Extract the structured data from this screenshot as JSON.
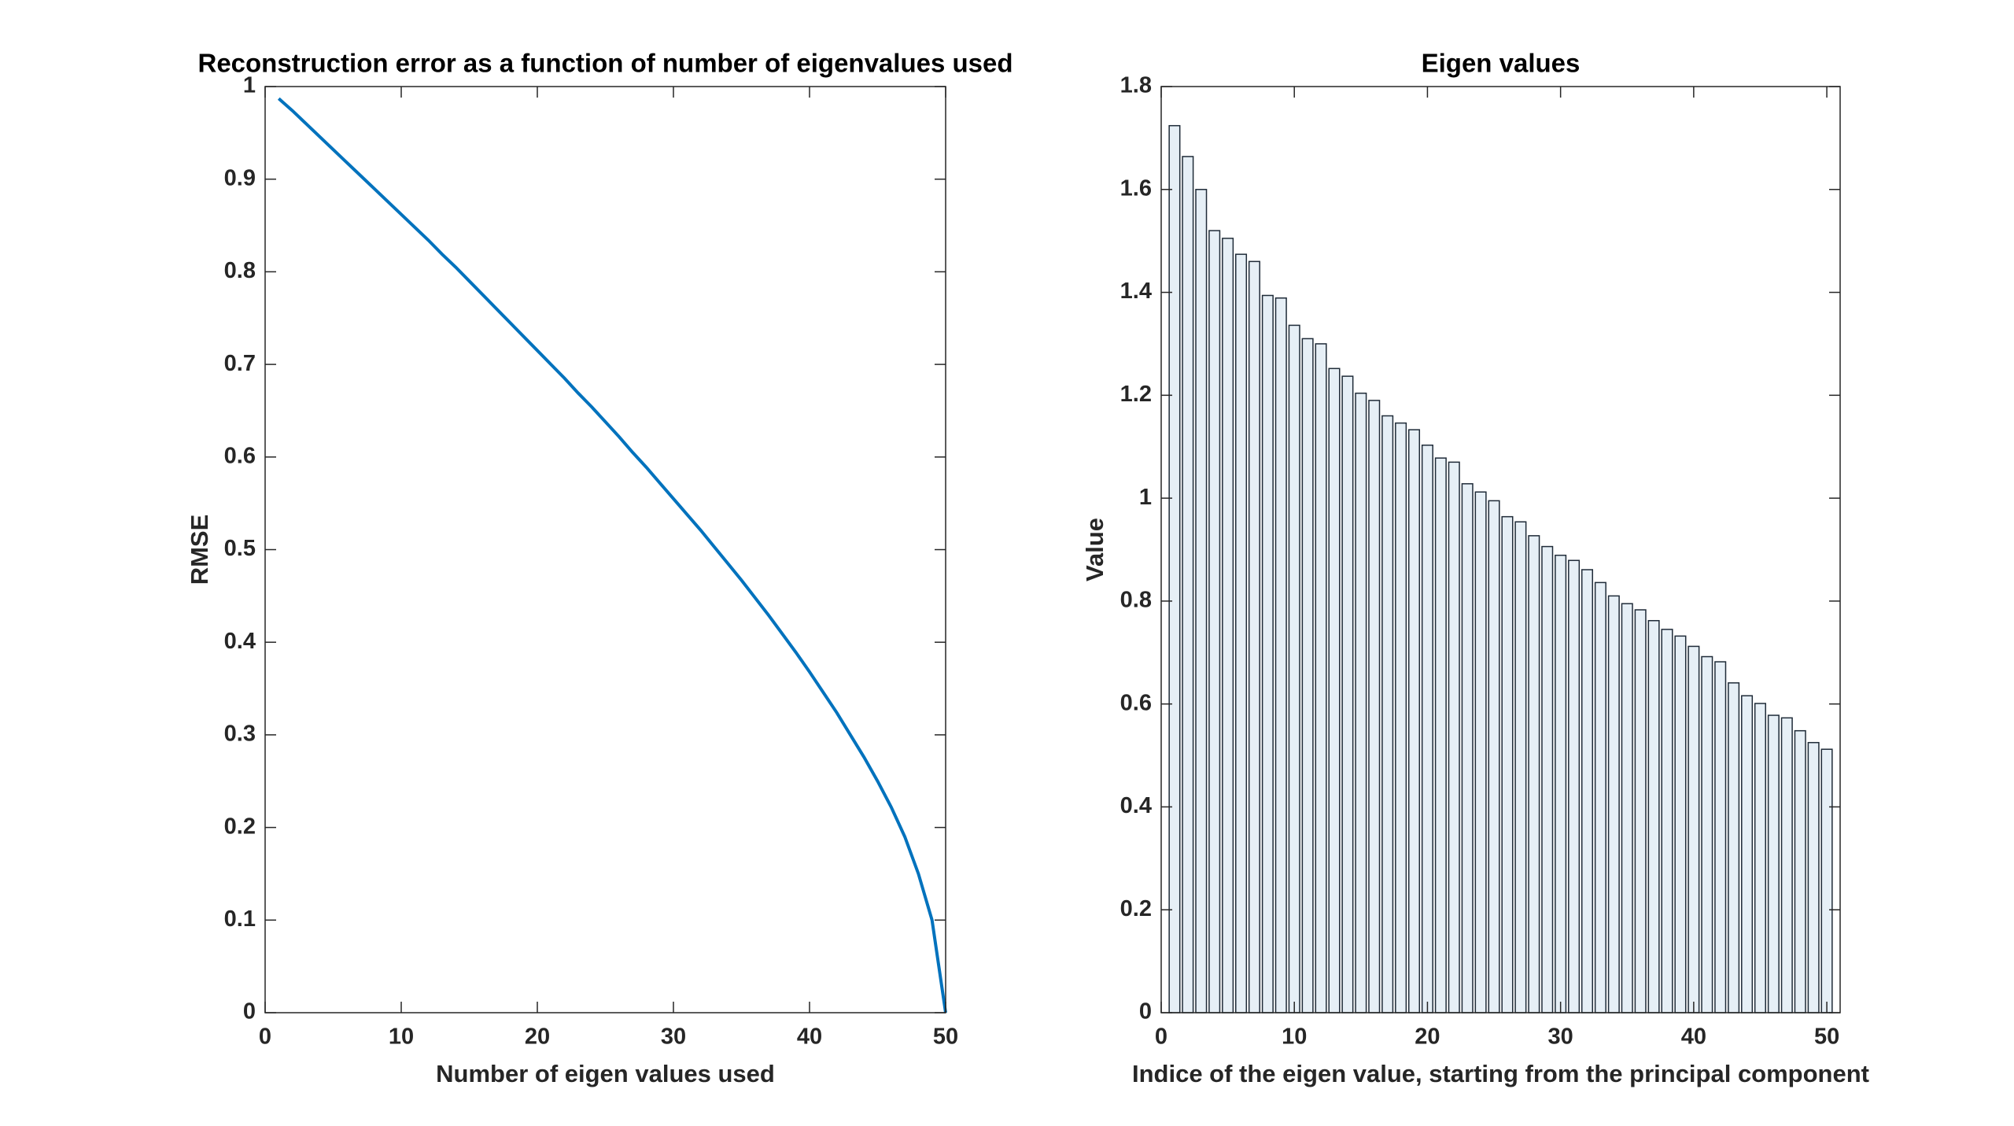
{
  "chart_data": [
    {
      "type": "line",
      "title": "Reconstruction error as a function of number of eigenvalues used",
      "x_label": "Number of eigen values used",
      "y_label": "RMSE",
      "xlim": [
        0,
        50
      ],
      "xticks": [
        0,
        10,
        20,
        30,
        40,
        50
      ],
      "ylim": [
        0,
        1
      ],
      "yticks": [
        0,
        0.1,
        0.2,
        0.3,
        0.4,
        0.5,
        0.6,
        0.7,
        0.8,
        0.9,
        1
      ],
      "x": [
        1,
        2,
        3,
        4,
        5,
        6,
        7,
        8,
        9,
        10,
        11,
        12,
        13,
        14,
        15,
        16,
        17,
        18,
        19,
        20,
        21,
        22,
        23,
        24,
        25,
        26,
        27,
        28,
        29,
        30,
        31,
        32,
        33,
        34,
        35,
        36,
        37,
        38,
        39,
        40,
        41,
        42,
        43,
        44,
        45,
        46,
        47,
        48,
        49,
        50
      ],
      "series": [
        {
          "color": "#0072bd",
          "values": [
            0.987,
            0.974,
            0.96,
            0.946,
            0.932,
            0.918,
            0.904,
            0.89,
            0.876,
            0.862,
            0.848,
            0.834,
            0.819,
            0.805,
            0.79,
            0.775,
            0.76,
            0.745,
            0.73,
            0.715,
            0.7,
            0.685,
            0.669,
            0.654,
            0.638,
            0.622,
            0.605,
            0.589,
            0.572,
            0.555,
            0.538,
            0.521,
            0.503,
            0.485,
            0.467,
            0.448,
            0.429,
            0.409,
            0.389,
            0.368,
            0.346,
            0.324,
            0.3,
            0.276,
            0.25,
            0.222,
            0.19,
            0.15,
            0.1,
            0
          ]
        }
      ]
    },
    {
      "type": "bar",
      "title": "Eigen values",
      "x_label": "Indice of the eigen value, starting from the principal component",
      "y_label": "Value",
      "xlim": [
        0,
        51
      ],
      "xticks": [
        0,
        10,
        20,
        30,
        40,
        50
      ],
      "ylim": [
        0,
        1.8
      ],
      "yticks": [
        0,
        0.2,
        0.4,
        0.6,
        0.8,
        1,
        1.2,
        1.4,
        1.6,
        1.8
      ],
      "x": [
        1,
        2,
        3,
        4,
        5,
        6,
        7,
        8,
        9,
        10,
        11,
        12,
        13,
        14,
        15,
        16,
        17,
        18,
        19,
        20,
        21,
        22,
        23,
        24,
        25,
        26,
        27,
        28,
        29,
        30,
        31,
        32,
        33,
        34,
        35,
        36,
        37,
        38,
        39,
        40,
        41,
        42,
        43,
        44,
        45,
        46,
        47,
        48,
        49,
        50
      ],
      "color": "#e6eff6",
      "edge_color": "#1f2b38",
      "values": [
        1.724,
        1.664,
        1.6,
        1.52,
        1.505,
        1.474,
        1.46,
        1.394,
        1.389,
        1.336,
        1.31,
        1.3,
        1.252,
        1.237,
        1.204,
        1.19,
        1.16,
        1.146,
        1.133,
        1.103,
        1.078,
        1.07,
        1.028,
        1.012,
        0.995,
        0.964,
        0.954,
        0.927,
        0.906,
        0.889,
        0.879,
        0.861,
        0.836,
        0.81,
        0.795,
        0.783,
        0.762,
        0.745,
        0.732,
        0.712,
        0.692,
        0.682,
        0.641,
        0.616,
        0.601,
        0.578,
        0.573,
        0.548,
        0.525,
        0.512
      ]
    }
  ]
}
